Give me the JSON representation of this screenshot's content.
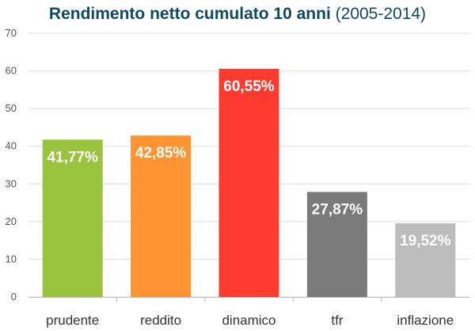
{
  "chart_data": {
    "type": "bar",
    "title": "Rendimento netto cumulato 10 anni",
    "subtitle": "(2005-2014)",
    "categories": [
      "prudente",
      "reddito",
      "dinamico",
      "tfr",
      "inflazione"
    ],
    "values": [
      41.77,
      42.85,
      60.55,
      27.87,
      19.52
    ],
    "data_labels": [
      "41,77%",
      "42,85%",
      "60,55%",
      "27,87%",
      "19,52%"
    ],
    "colors": [
      "#9bc33d",
      "#ff9433",
      "#ff3b30",
      "#7a7a7a",
      "#bcbcbc"
    ],
    "ylim": [
      0,
      70
    ],
    "yticks": [
      0,
      10,
      20,
      30,
      40,
      50,
      60,
      70
    ],
    "xlabel": "",
    "ylabel": "",
    "grid": true,
    "legend": "none"
  }
}
